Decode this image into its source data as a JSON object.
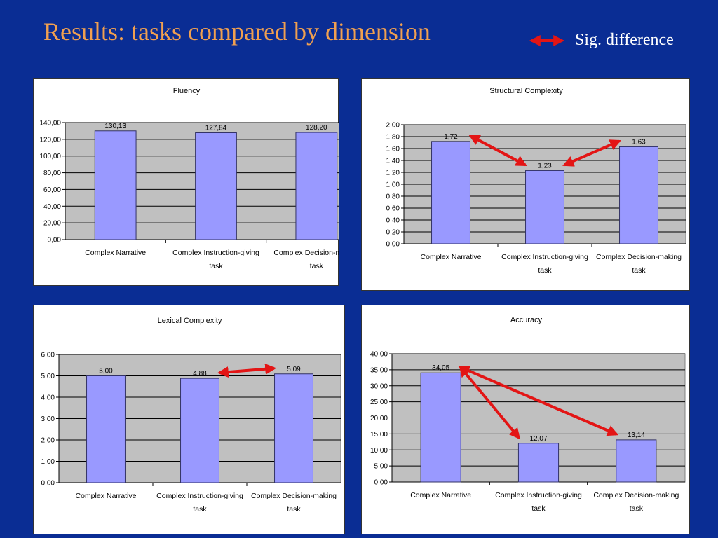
{
  "slide": {
    "title": "Results: tasks compared by dimension",
    "legend_label": "Sig. difference"
  },
  "colors": {
    "background": "#0a2d94",
    "title": "#f0a050",
    "bar_fill": "#9999ff",
    "plot_area": "#c0c0c0",
    "arrow": "#e31515"
  },
  "chart_data": [
    {
      "id": "fluency",
      "type": "bar",
      "title": "Fluency",
      "categories": [
        "Complex Narrative",
        "Complex Instruction-giving task",
        "Complex Decision-making task"
      ],
      "category_lines": [
        [
          "Complex Narrative"
        ],
        [
          "Complex Instruction-giving",
          "task"
        ],
        [
          "Complex Decision-making",
          "task"
        ]
      ],
      "values": [
        130.13,
        127.84,
        128.2
      ],
      "value_labels": [
        "130,13",
        "127,84",
        "128,20"
      ],
      "ylim": [
        0,
        140
      ],
      "yticks": [
        "0,00",
        "20,00",
        "40,00",
        "60,00",
        "80,00",
        "100,00",
        "120,00",
        "140,00"
      ],
      "grid": true,
      "sig_differences": []
    },
    {
      "id": "structural-complexity",
      "type": "bar",
      "title": "Structural Complexity",
      "categories": [
        "Complex Narrative",
        "Complex Instruction-giving task",
        "Complex Decision-making task"
      ],
      "category_lines": [
        [
          "Complex Narrative"
        ],
        [
          "Complex Instruction-giving",
          "task"
        ],
        [
          "Complex Decision-making",
          "task"
        ]
      ],
      "values": [
        1.72,
        1.23,
        1.63
      ],
      "value_labels": [
        "1,72",
        "1,23",
        "1,63"
      ],
      "ylim": [
        0,
        2
      ],
      "yticks": [
        "0,00",
        "0,20",
        "0,40",
        "0,60",
        "0,80",
        "1,00",
        "1,20",
        "1,40",
        "1,60",
        "1,80",
        "2,00"
      ],
      "grid": true,
      "sig_differences": [
        [
          0,
          1
        ],
        [
          1,
          2
        ]
      ]
    },
    {
      "id": "lexical-complexity",
      "type": "bar",
      "title": "Lexical Complexity",
      "categories": [
        "Complex Narrative",
        "Complex Instruction-giving task",
        "Complex Decision-making task"
      ],
      "category_lines": [
        [
          "Complex Narrative"
        ],
        [
          "Complex Instruction-giving",
          "task"
        ],
        [
          "Complex Decision-making",
          "task"
        ]
      ],
      "values": [
        5.0,
        4.88,
        5.09
      ],
      "value_labels": [
        "5,00",
        "4,88",
        "5,09"
      ],
      "ylim": [
        0,
        6
      ],
      "yticks": [
        "0,00",
        "1,00",
        "2,00",
        "3,00",
        "4,00",
        "5,00",
        "6,00"
      ],
      "grid": true,
      "sig_differences": [
        [
          1,
          2
        ]
      ]
    },
    {
      "id": "accuracy",
      "type": "bar",
      "title": "Accuracy",
      "categories": [
        "Complex Narrative",
        "Complex Instruction-giving task",
        "Complex Decision-making task"
      ],
      "category_lines": [
        [
          "Complex Narrative"
        ],
        [
          "Complex Instruction-giving",
          "task"
        ],
        [
          "Complex Decision-making",
          "task"
        ]
      ],
      "values": [
        34.05,
        12.07,
        13.14
      ],
      "value_labels": [
        "34,05",
        "12,07",
        "13,14"
      ],
      "ylim": [
        0,
        40
      ],
      "yticks": [
        "0,00",
        "5,00",
        "10,00",
        "15,00",
        "20,00",
        "25,00",
        "30,00",
        "35,00",
        "40,00"
      ],
      "grid": true,
      "sig_differences": [
        [
          0,
          1
        ],
        [
          0,
          2
        ]
      ]
    }
  ]
}
